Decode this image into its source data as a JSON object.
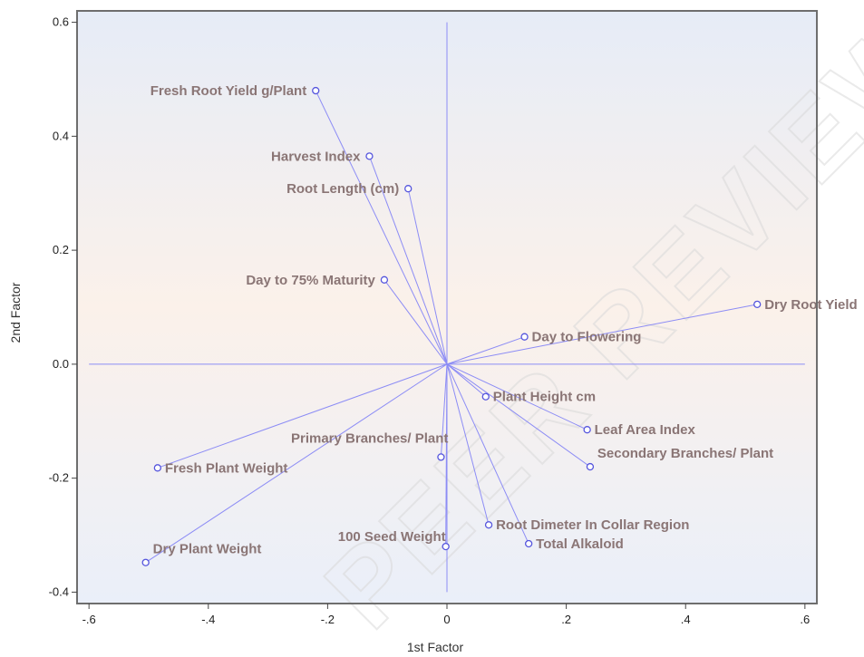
{
  "chart_data": {
    "type": "scatter",
    "title": "",
    "xlabel": "1st Factor",
    "ylabel": "2nd Factor",
    "xlim": [
      -0.62,
      0.62
    ],
    "ylim": [
      -0.42,
      0.62
    ],
    "x_ticks": [
      -0.6,
      -0.4,
      -0.2,
      0.0,
      0.2,
      0.4,
      0.6
    ],
    "x_tick_labels": [
      "-.6",
      "-.4",
      "-.2",
      "0",
      ".2",
      ".4",
      ".6"
    ],
    "y_ticks": [
      -0.4,
      -0.2,
      0.0,
      0.2,
      0.4,
      0.6
    ],
    "y_tick_labels": [
      "-0.4",
      "-0.2",
      "0.0",
      "0.2",
      "0.4",
      "0.6"
    ],
    "reference_lines": {
      "x": 0,
      "y": 0
    },
    "vectors_from_origin": true,
    "grid": false,
    "legend": "none",
    "points": [
      {
        "label": "Fresh Root Yield g/Plant",
        "x": -0.22,
        "y": 0.48,
        "label_side": "left"
      },
      {
        "label": "Harvest Index",
        "x": -0.13,
        "y": 0.365,
        "label_side": "left"
      },
      {
        "label": "Root Length (cm)",
        "x": -0.065,
        "y": 0.308,
        "label_side": "left"
      },
      {
        "label": "Day to 75% Maturity",
        "x": -0.105,
        "y": 0.148,
        "label_side": "left"
      },
      {
        "label": "Dry Root Yield",
        "x": 0.52,
        "y": 0.105,
        "label_side": "right"
      },
      {
        "label": "Day to Flowering",
        "x": 0.13,
        "y": 0.048,
        "label_side": "right"
      },
      {
        "label": "Plant Height cm",
        "x": 0.065,
        "y": -0.057,
        "label_side": "right"
      },
      {
        "label": "Leaf Area Index",
        "x": 0.235,
        "y": -0.115,
        "label_side": "right"
      },
      {
        "label": "Secondary Branches/ Plant",
        "x": 0.24,
        "y": -0.18,
        "label_side": "right-up"
      },
      {
        "label": "Primary Branches/ Plant",
        "x": -0.01,
        "y": -0.163,
        "label_side": "above"
      },
      {
        "label": "Fresh Plant Weight",
        "x": -0.485,
        "y": -0.182,
        "label_side": "right"
      },
      {
        "label": "Root Dimeter In Collar Region",
        "x": 0.07,
        "y": -0.282,
        "label_side": "right"
      },
      {
        "label": "100 Seed Weight",
        "x": -0.002,
        "y": -0.32,
        "label_side": "left-up"
      },
      {
        "label": "Total Alkaloid",
        "x": 0.137,
        "y": -0.315,
        "label_side": "right"
      },
      {
        "label": "Dry Plant Weight",
        "x": -0.505,
        "y": -0.348,
        "label_side": "right-up"
      }
    ]
  },
  "colors": {
    "vector": "#8c8cf5",
    "marker": "#5555dd",
    "label": "#8a7575",
    "plot_bg_top": "#e6ecf7",
    "plot_bg_mid": "#fbf1ea",
    "plot_bg_bottom": "#eaeff9",
    "frame": "#6e6e6e"
  },
  "watermark": "PEER REVIEW"
}
